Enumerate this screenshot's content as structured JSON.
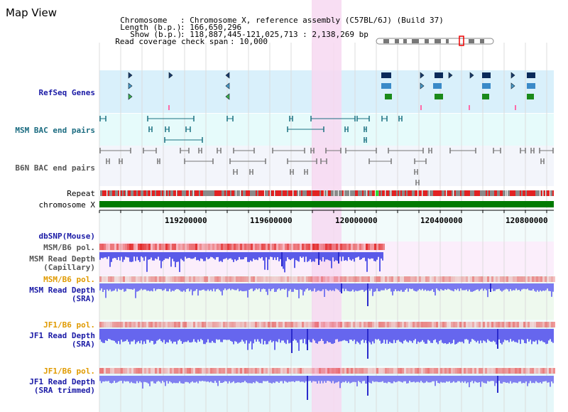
{
  "view_title": "Map View",
  "header": {
    "chromosome_key": "Chromosome",
    "chromosome_value": ": Chromosome X, reference assembly (C57BL/6J) (Build 37)",
    "length_key": "Length (b.p.)",
    "length_value": ": 166,650,296",
    "show_key": "Show (b.p.)",
    "show_value": ": 118,887,445-121,025,713 : 2,138,269 bp",
    "coverage_key": "Read coverage check span",
    "coverage_value": ": 10,000"
  },
  "tracks": {
    "refseq": "RefSeq Genes",
    "msm_bac": "MSM BAC end pairs",
    "b6n_bac": "B6N BAC end pairs",
    "repeat": "Repeat",
    "chromosome": "chromosome X",
    "dbsnp": "dbSNP(Mouse)",
    "msm_pol_1": "MSM/B6 pol.",
    "msm_depth_cap_1": "MSM Read Depth",
    "msm_depth_cap_2": "(Capillary)",
    "msm_pol_2": "MSM/B6 pol.",
    "msm_depth_sra_1": "MSM Read Depth",
    "msm_depth_sra_2": "(SRA)",
    "jf1_pol_1": "JF1/B6 pol.",
    "jf1_depth_sra_1": "JF1 Read Depth",
    "jf1_depth_sra_2": "(SRA)",
    "jf1_pol_2": "JF1/B6 pol.",
    "jf1_depth_trim_1": "JF1 Read Depth",
    "jf1_depth_trim_2": "(SRA trimmed)"
  },
  "axis": {
    "ticks": [
      "119200000",
      "119600000",
      "120000000",
      "120400000",
      "120800000"
    ]
  },
  "colors": {
    "highlight": "#f7d8f1",
    "refseq_band": "#d9f0fb",
    "msm_band": "#e6fbfb",
    "b6n_band": "#f3f5fb",
    "chromosome_bar": "#007a00",
    "depth_blue": "#5a5ae8",
    "pol_red": "#e22222"
  }
}
